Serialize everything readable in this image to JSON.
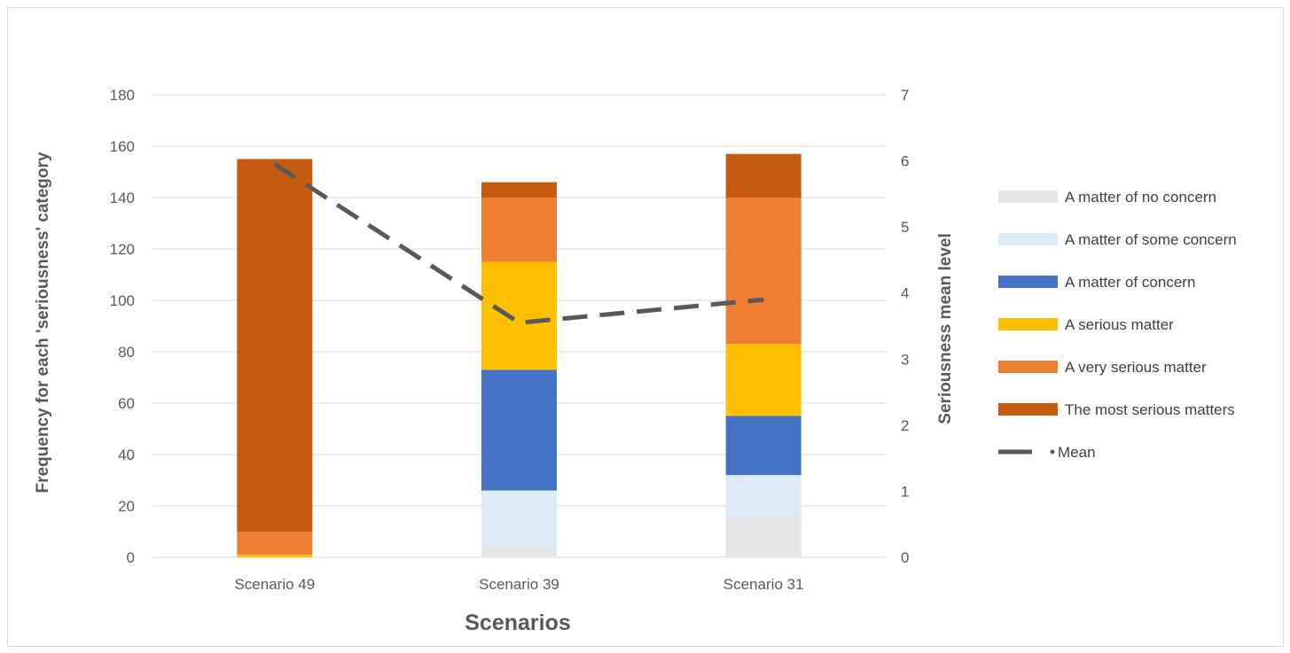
{
  "chart_data": {
    "type": "bar",
    "stacked": true,
    "categories": [
      "Scenario 49",
      "Scenario 39",
      "Scenario 31"
    ],
    "xlabel": "Scenarios",
    "ylabel": "Frequency for each 'seriousness' category",
    "y2label": "Seriousness mean level",
    "ylim": [
      0,
      180
    ],
    "y2lim": [
      0,
      7
    ],
    "yticks": [
      "0",
      "20",
      "40",
      "60",
      "80",
      "100",
      "120",
      "140",
      "160",
      "180"
    ],
    "y2ticks": [
      "0",
      "1",
      "2",
      "3",
      "4",
      "5",
      "6",
      "7"
    ],
    "grid": true,
    "legend_position": "right",
    "series": [
      {
        "name": "A matter of no concern",
        "color": "#E7E6E6",
        "values": [
          0,
          3,
          15
        ]
      },
      {
        "name": "A matter of some concern",
        "color": "#DEEBF7",
        "values": [
          0,
          23,
          17
        ]
      },
      {
        "name": "A matter of concern",
        "color": "#4472C4",
        "values": [
          0,
          47,
          23
        ]
      },
      {
        "name": "A serious matter",
        "color": "#FFC000",
        "values": [
          1,
          42,
          28
        ]
      },
      {
        "name": "A very serious matter",
        "color": "#ED7D31",
        "values": [
          9,
          25,
          57
        ]
      },
      {
        "name": "The most serious matters",
        "color": "#C55A11",
        "values": [
          145,
          6,
          17
        ]
      }
    ],
    "line_series": {
      "name": "Mean",
      "color": "#595959",
      "axis": "secondary",
      "style": "dashed",
      "values": [
        5.95,
        3.55,
        3.9
      ]
    }
  }
}
